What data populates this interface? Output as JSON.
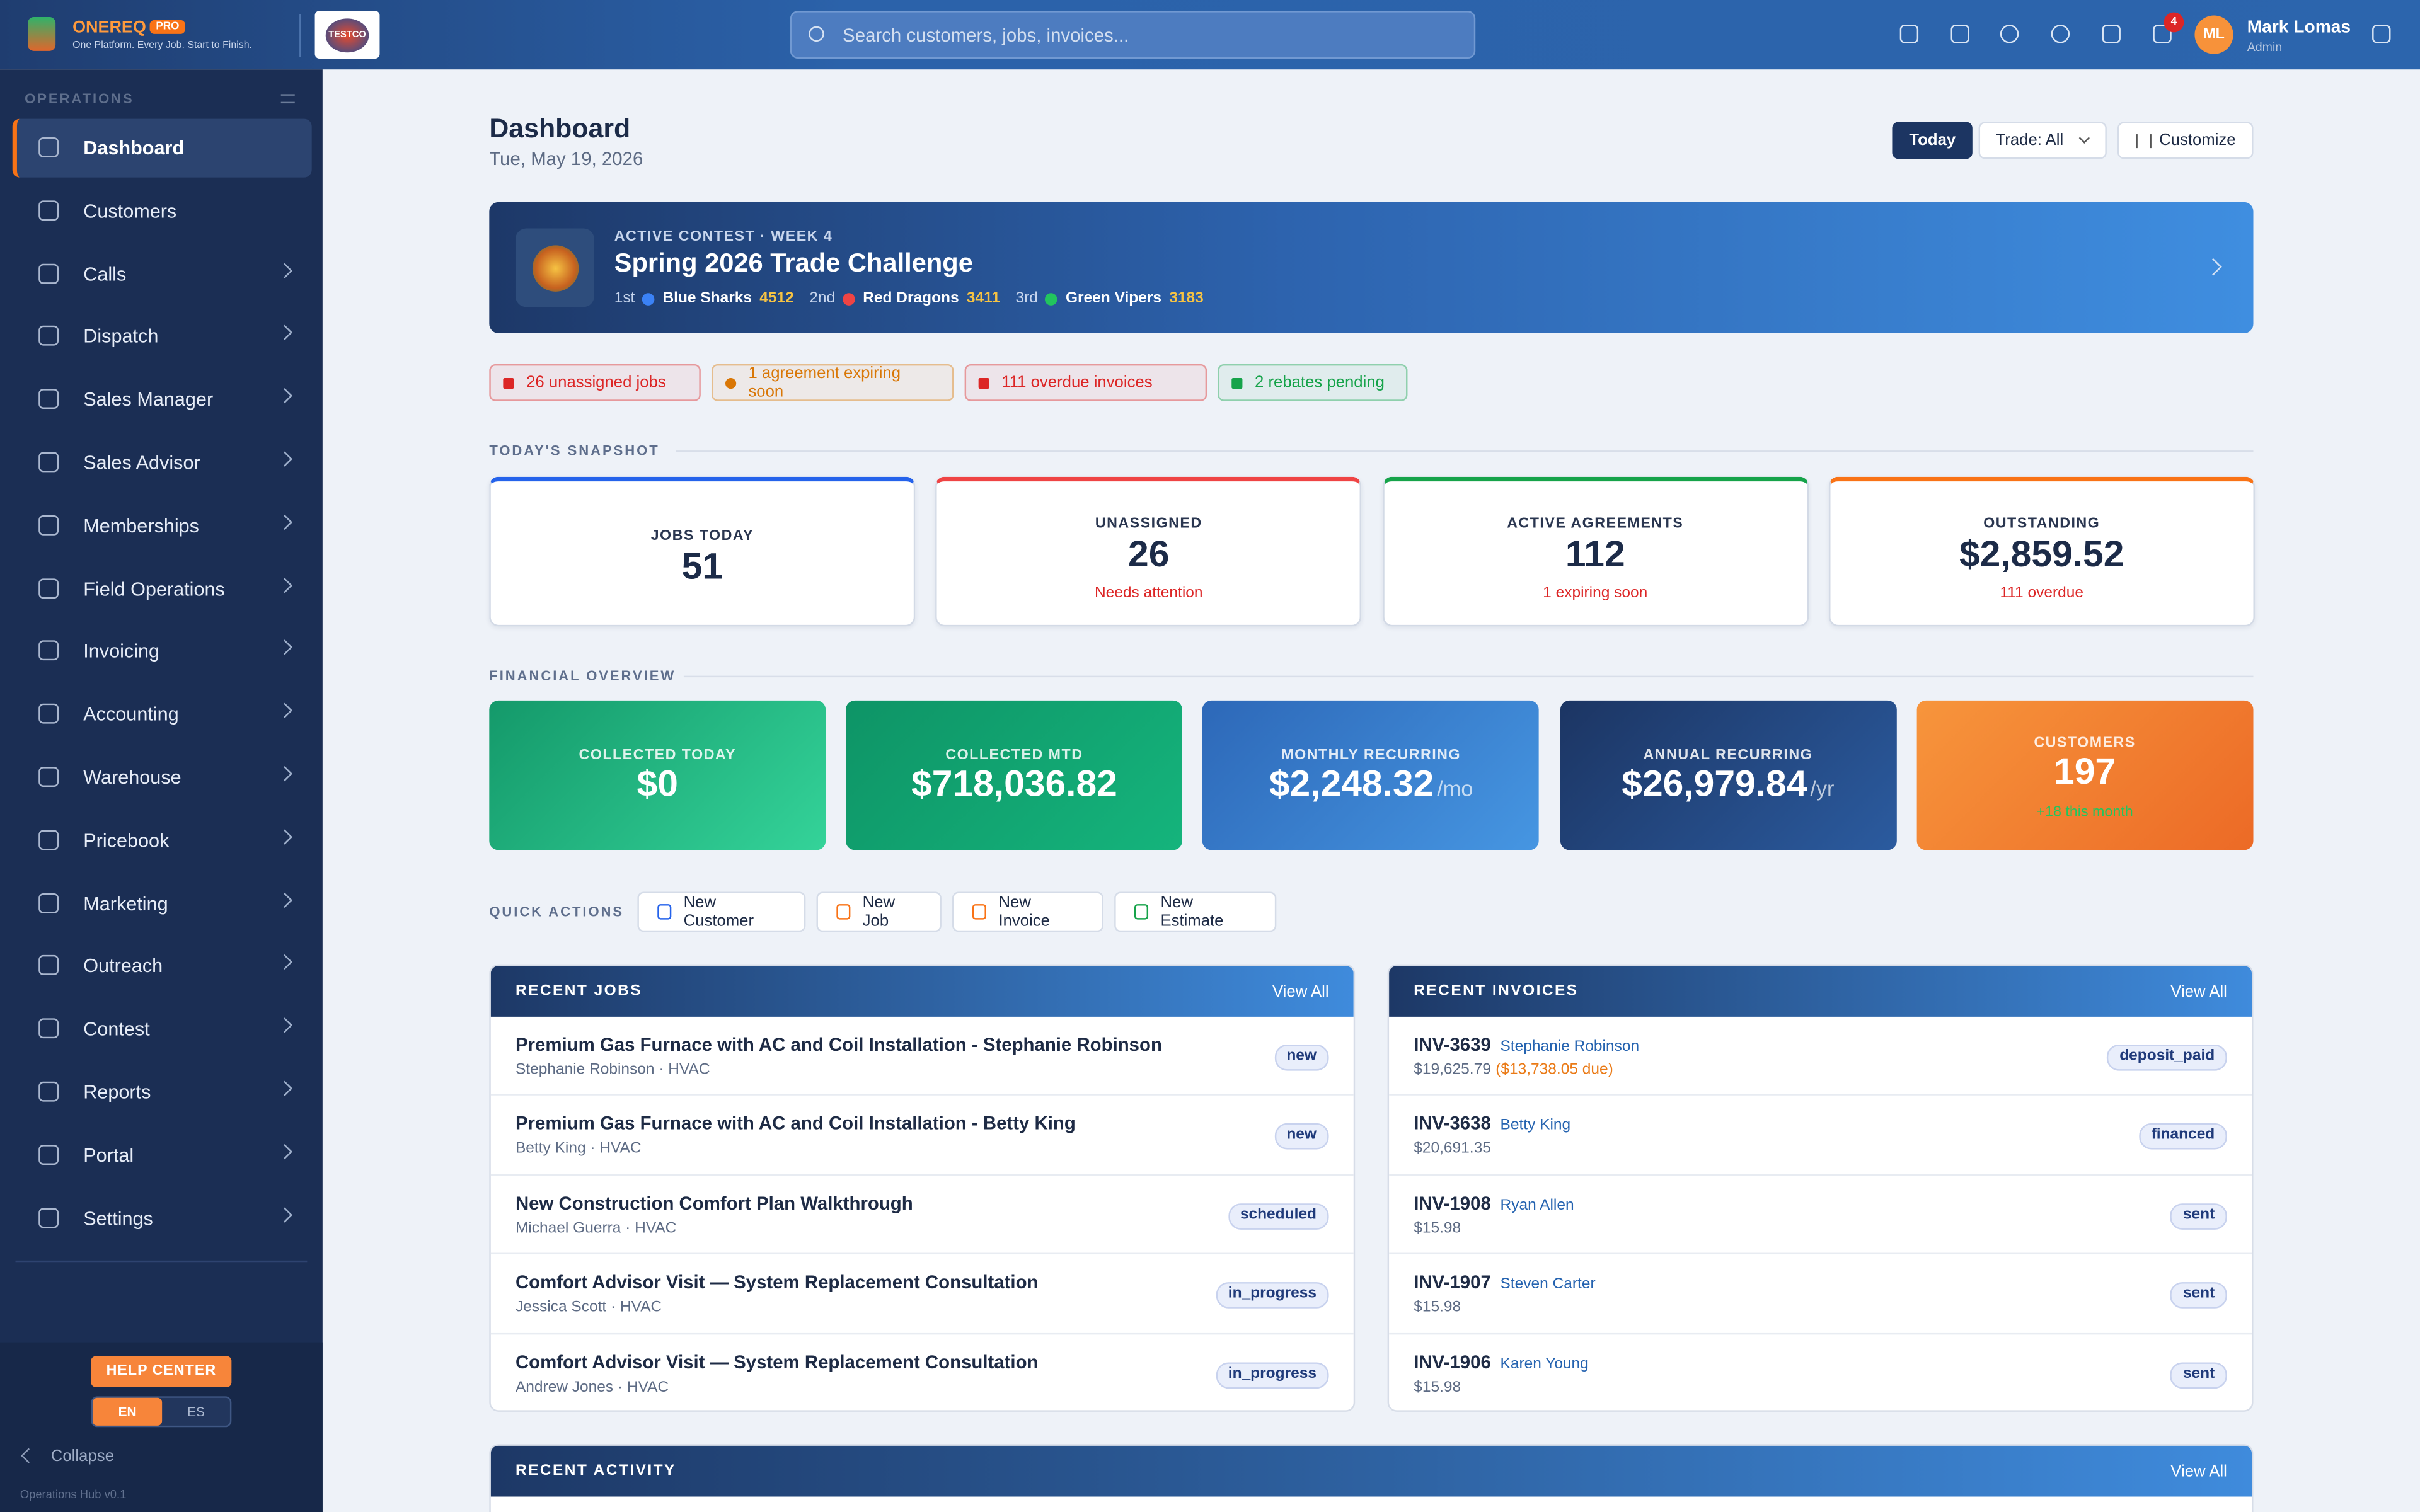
{
  "header": {
    "brand": "ONEREQ",
    "badge": "PRO",
    "tagline": "One Platform. Every Job. Start to Finish.",
    "logo_text": "TESTCO",
    "search_placeholder": "Search customers, jobs, invoices...",
    "notification_count": 4,
    "user_initials": "ML",
    "user_name": "Mark Lomas",
    "user_role": "Admin"
  },
  "sidebar": {
    "section": "OPERATIONS",
    "items": [
      "Dashboard",
      "Customers",
      "Calls",
      "Dispatch",
      "Sales Manager",
      "Sales Advisor",
      "Memberships",
      "Field Operations",
      "Invoicing",
      "Accounting",
      "Warehouse",
      "Pricebook",
      "Marketing",
      "Outreach",
      "Contest",
      "Reports",
      "Portal",
      "Settings"
    ],
    "help": "HELP CENTER",
    "languages": [
      "EN",
      "ES"
    ],
    "collapse": "Collapse",
    "version": "Operations Hub v0.1"
  },
  "page": {
    "title": "Dashboard",
    "date": "Tue, May 19, 2026",
    "buttons": [
      "Today",
      "Trade: All",
      "Customize"
    ]
  },
  "contest": {
    "kicker": "ACTIVE CONTEST · WEEK 4",
    "title": "Spring 2026 Trade Challenge",
    "standings": [
      {
        "place": "1st",
        "team": "Blue Sharks",
        "score": 4512,
        "color": "#3b82f6"
      },
      {
        "place": "2nd",
        "team": "Red Dragons",
        "score": 3411,
        "color": "#ef4444"
      },
      {
        "place": "3rd",
        "team": "Green Vipers",
        "score": 3183,
        "color": "#22c55e"
      }
    ]
  },
  "alerts": [
    {
      "text": "26 unassigned jobs",
      "color": "#dc2626"
    },
    {
      "text": "1 agreement expiring soon",
      "color": "#d97706"
    },
    {
      "text": "111 overdue invoices",
      "color": "#dc2626"
    },
    {
      "text": "2 rebates pending",
      "color": "#16a34a"
    }
  ],
  "snapshot": {
    "heading": "TODAY'S SNAPSHOT",
    "cards": [
      {
        "label": "JOBS TODAY",
        "value": "51",
        "color": "#2563eb"
      },
      {
        "label": "UNASSIGNED",
        "value": "26",
        "note": "Needs attention",
        "color": "#ef4444"
      },
      {
        "label": "ACTIVE AGREEMENTS",
        "value": "112",
        "note": "1 expiring soon",
        "color": "#16a34a"
      },
      {
        "label": "OUTSTANDING",
        "value": "$2,859.52",
        "note": "111 overdue",
        "color": "#f97316"
      }
    ]
  },
  "financial": {
    "heading": "FINANCIAL OVERVIEW",
    "cards": [
      {
        "label": "COLLECTED TODAY",
        "value": "$0",
        "bg": "linear-gradient(135deg,#14996a,#34d399)"
      },
      {
        "label": "COLLECTED MTD",
        "value": "$718,036.82",
        "bg": "linear-gradient(135deg,#0e9466,#15b47c)"
      },
      {
        "label": "MONTHLY RECURRING",
        "value": "$2,248.32",
        "unit": "/mo",
        "bg": "linear-gradient(135deg,#2d68b8,#4696e2)"
      },
      {
        "label": "ANNUAL RECURRING",
        "value": "$26,979.84",
        "unit": "/yr",
        "bg": "linear-gradient(135deg,#1c3563,#2b5b9f)"
      },
      {
        "label": "CUSTOMERS",
        "value": "197",
        "note": "+18 this month",
        "bg": "linear-gradient(135deg,#f7953c,#ec6a26)"
      }
    ]
  },
  "quick_actions": {
    "heading": "QUICK ACTIONS",
    "buttons": [
      {
        "text": "New Customer",
        "color": "#2563eb"
      },
      {
        "text": "New Job",
        "color": "#f97316"
      },
      {
        "text": "New Invoice",
        "color": "#f97316"
      },
      {
        "text": "New Estimate",
        "color": "#16a34a"
      }
    ]
  },
  "recent_jobs": {
    "heading": "RECENT JOBS",
    "link": "View All",
    "rows": [
      {
        "title": "Premium Gas Furnace with AC and Coil Installation - Stephanie Robinson",
        "meta": "Stephanie Robinson · HVAC",
        "status": "new"
      },
      {
        "title": "Premium Gas Furnace with AC and Coil Installation - Betty King",
        "meta": "Betty King · HVAC",
        "status": "new"
      },
      {
        "title": "New Construction Comfort Plan Walkthrough",
        "meta": "Michael Guerra · HVAC",
        "status": "scheduled"
      },
      {
        "title": "Comfort Advisor Visit — System Replacement Consultation",
        "meta": "Jessica Scott · HVAC",
        "status": "in_progress"
      },
      {
        "title": "Comfort Advisor Visit — System Replacement Consultation",
        "meta": "Andrew Jones · HVAC",
        "status": "in_progress"
      }
    ]
  },
  "recent_invoices": {
    "heading": "RECENT INVOICES",
    "link": "View All",
    "rows": [
      {
        "number": "INV-3639",
        "customer": "Stephanie Robinson",
        "amount": "$19,625.79",
        "due": "($13,738.05 due)",
        "status": "deposit_paid"
      },
      {
        "number": "INV-3638",
        "customer": "Betty King",
        "amount": "$20,691.35",
        "status": "financed"
      },
      {
        "number": "INV-1908",
        "customer": "Ryan Allen",
        "amount": "$15.98",
        "status": "sent"
      },
      {
        "number": "INV-1907",
        "customer": "Steven Carter",
        "amount": "$15.98",
        "status": "sent"
      },
      {
        "number": "INV-1906",
        "customer": "Karen Young",
        "amount": "$15.98",
        "status": "sent"
      }
    ]
  },
  "recent_activity": {
    "heading": "RECENT ACTIVITY",
    "link": "View All"
  }
}
